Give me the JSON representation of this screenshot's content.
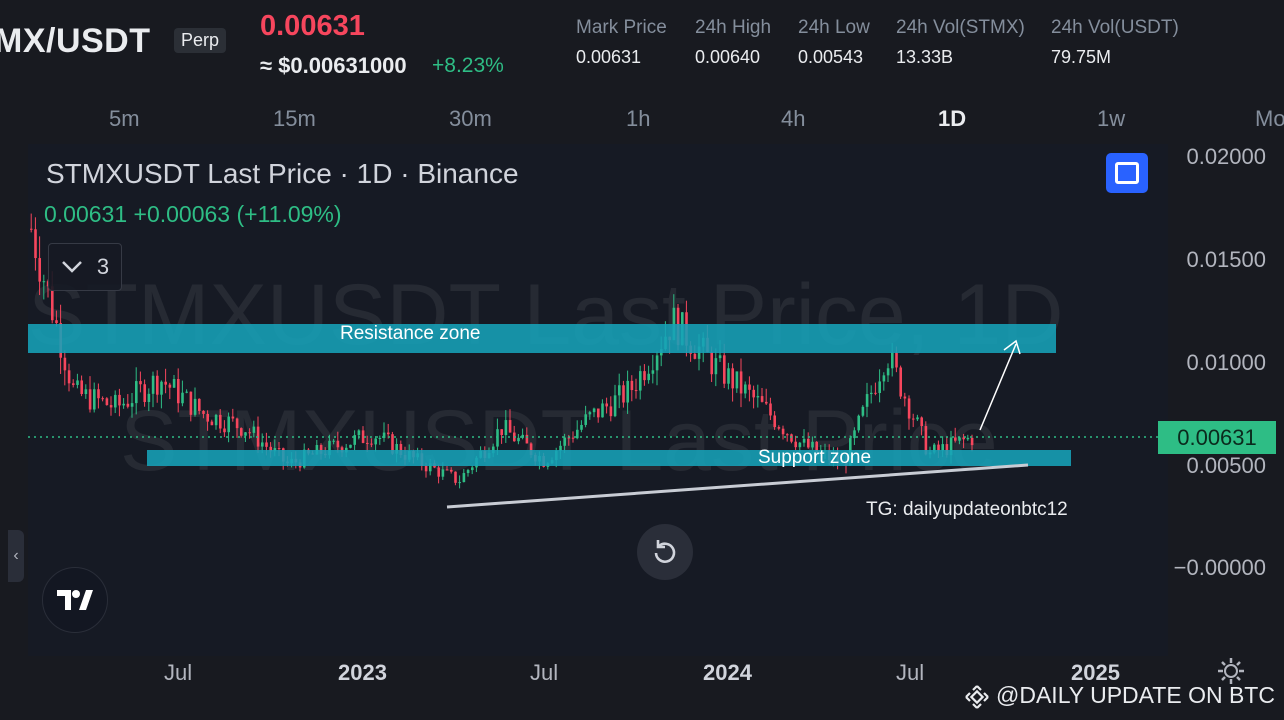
{
  "header": {
    "pair": "MX/USDT",
    "badge": "Perp",
    "last_price": "0.00631",
    "usd_price": "≈ $0.00631000",
    "change": "+8.23%",
    "stats": [
      {
        "label": "Mark Price",
        "value": "0.00631"
      },
      {
        "label": "24h High",
        "value": "0.00640"
      },
      {
        "label": "24h Low",
        "value": "0.00543"
      },
      {
        "label": "24h Vol(STMX)",
        "value": "13.33B"
      },
      {
        "label": "24h Vol(USDT)",
        "value": "79.75M"
      }
    ]
  },
  "timeframes": {
    "items": [
      "5m",
      "15m",
      "30m",
      "1h",
      "4h",
      "1D",
      "1w",
      "Mo"
    ],
    "active": "1D"
  },
  "chart": {
    "title": "STMXUSDT Last Price · 1D · Binance",
    "ohlc_line": "0.00631  +0.00063 (+11.09%)",
    "indicator_count": "3",
    "watermark_1": "STMXUSDT Last Price, 1D",
    "watermark_2": "STMXUSDT Last Price",
    "y_ticks": [
      "0.02000",
      "0.01500",
      "0.01000",
      "0.00500",
      "−0.00000"
    ],
    "current_price_tag": "0.00631",
    "x_ticks": [
      "Jul",
      "2023",
      "Jul",
      "2024",
      "Jul",
      "2025"
    ],
    "resistance_label": "Resistance zone",
    "support_label": "Support zone",
    "telegram": "TG: dailyupdateonbtc12",
    "colors": {
      "up": "#2ebd85",
      "down": "#f6465d",
      "zone": "#17a2b8",
      "price_tag": "#2ebd85"
    }
  },
  "chart_data": {
    "type": "candlestick",
    "title": "STMXUSDT Last Price · 1D · Binance",
    "y_range": [
      0,
      0.02
    ],
    "y_ticks": [
      0.02,
      0.015,
      0.01,
      0.005,
      0
    ],
    "current_price": 0.00631,
    "resistance_zone": [
      0.0104,
      0.0118
    ],
    "support_zone": [
      0.0049,
      0.0056
    ],
    "approx_closes": [
      {
        "date": "2022-05",
        "close": 0.0165
      },
      {
        "date": "2022-06",
        "close": 0.0085
      },
      {
        "date": "2022-07",
        "close": 0.0078
      },
      {
        "date": "2022-08",
        "close": 0.0092
      },
      {
        "date": "2022-09",
        "close": 0.0075
      },
      {
        "date": "2022-10",
        "close": 0.0068
      },
      {
        "date": "2022-11",
        "close": 0.005
      },
      {
        "date": "2023-01",
        "close": 0.0058
      },
      {
        "date": "2023-03",
        "close": 0.0065
      },
      {
        "date": "2023-05",
        "close": 0.0052
      },
      {
        "date": "2023-06",
        "close": 0.0042
      },
      {
        "date": "2023-07",
        "close": 0.0068
      },
      {
        "date": "2023-09",
        "close": 0.0052
      },
      {
        "date": "2023-11",
        "close": 0.0072
      },
      {
        "date": "2024-01",
        "close": 0.0086
      },
      {
        "date": "2024-03",
        "close": 0.012
      },
      {
        "date": "2024-04",
        "close": 0.0098
      },
      {
        "date": "2024-05",
        "close": 0.008
      },
      {
        "date": "2024-06",
        "close": 0.006
      },
      {
        "date": "2024-07",
        "close": 0.005
      },
      {
        "date": "2024-07",
        "close": 0.0105
      },
      {
        "date": "2024-08",
        "close": 0.0055
      },
      {
        "date": "2024-09",
        "close": 0.00631
      }
    ]
  },
  "footer": {
    "watermark": "@DAILY UPDATE ON BTC"
  }
}
